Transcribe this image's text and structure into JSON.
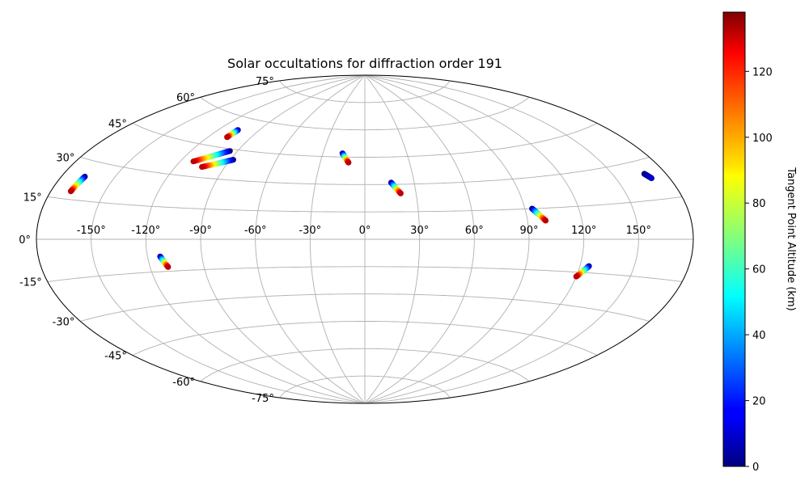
{
  "chart_data": {
    "type": "scatter",
    "projection": "aitoff",
    "title": "Solar occultations for diffraction order 191",
    "grid": true,
    "lon_ticks": [
      -150,
      -120,
      -90,
      -60,
      -30,
      0,
      30,
      60,
      90,
      120,
      150
    ],
    "lon_tick_labels": [
      "-150°",
      "-120°",
      "-90°",
      "-60°",
      "-30°",
      "0°",
      "30°",
      "60°",
      "90°",
      "120°",
      "150°"
    ],
    "lat_ticks": [
      -75,
      -60,
      -45,
      -30,
      -15,
      0,
      15,
      30,
      45,
      60,
      75
    ],
    "lat_tick_labels": [
      "-75°",
      "-60°",
      "-45°",
      "-30°",
      "-15°",
      "0°",
      "15°",
      "30°",
      "45°",
      "60°",
      "75°"
    ],
    "colorbar": {
      "label": "Tangent Point Altitude (km)",
      "colormap": "jet",
      "range": [
        0,
        138
      ],
      "ticks": [
        0,
        20,
        40,
        60,
        80,
        100,
        120
      ],
      "tick_labels": [
        "0",
        "20",
        "40",
        "60",
        "80",
        "100",
        "120"
      ]
    },
    "series": [
      {
        "lon_range": [
          -106,
          -107
        ],
        "lat_range": [
          54,
          50
        ],
        "alt_range": [
          0,
          130
        ]
      },
      {
        "lon_range": [
          -95,
          -112
        ],
        "lat_range": [
          44,
          37
        ],
        "alt_range": [
          0,
          130
        ]
      },
      {
        "lon_range": [
          -88,
          -104
        ],
        "lat_range": [
          40,
          35
        ],
        "alt_range": [
          0,
          130
        ]
      },
      {
        "lon_range": [
          -167,
          -169
        ],
        "lat_range": [
          24,
          18
        ],
        "alt_range": [
          0,
          130
        ]
      },
      {
        "lon_range": [
          -113,
          -110
        ],
        "lat_range": [
          -8,
          -13
        ],
        "alt_range": [
          0,
          130
        ]
      },
      {
        "lon_range": [
          -16,
          -11
        ],
        "lat_range": [
          47,
          42
        ],
        "alt_range": [
          0,
          130
        ]
      },
      {
        "lon_range": [
          16,
          21
        ],
        "lat_range": [
          31,
          25
        ],
        "alt_range": [
          0,
          130
        ]
      },
      {
        "lon_range": [
          94,
          100
        ],
        "lat_range": [
          15,
          9
        ],
        "alt_range": [
          0,
          130
        ]
      },
      {
        "lon_range": [
          125,
          120
        ],
        "lat_range": [
          -12,
          -17
        ],
        "alt_range": [
          0,
          130
        ]
      },
      {
        "lon_range": [
          168,
          170
        ],
        "lat_range": [
          25,
          23
        ],
        "alt_range": [
          0,
          10
        ]
      }
    ]
  }
}
